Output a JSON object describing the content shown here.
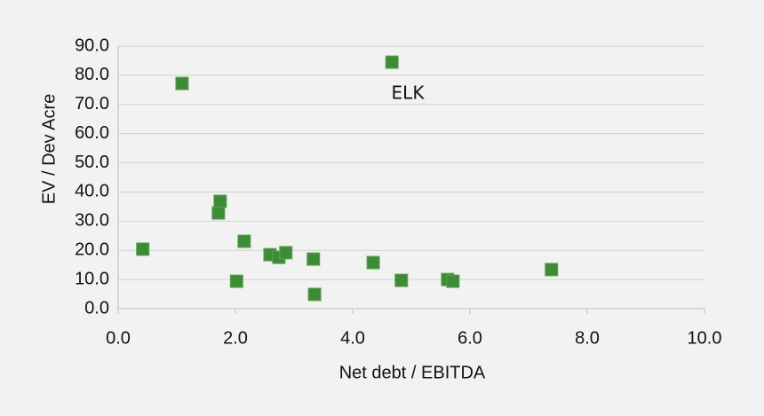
{
  "chart_data": {
    "type": "scatter",
    "x_label": "Net debt / EBITDA",
    "y_label": "EV / Dev Acre",
    "annotation": "ELK",
    "color": "#3e8a36",
    "grid": true,
    "x": [
      0.42,
      1.09,
      1.71,
      1.74,
      2.02,
      2.15,
      2.59,
      2.74,
      2.86,
      3.33,
      3.35,
      4.35,
      4.67,
      4.83,
      5.62,
      5.71,
      7.39
    ],
    "values": [
      20.4,
      77.2,
      32.8,
      36.8,
      9.4,
      23.1,
      18.5,
      17.6,
      19.2,
      17.0,
      4.9,
      15.8,
      84.5,
      9.7,
      10.0,
      9.4,
      13.4
    ],
    "xlim": [
      0,
      10
    ],
    "ylim": [
      0,
      90
    ],
    "xticks": [
      {
        "value": 0,
        "label": "0.0"
      },
      {
        "value": 2,
        "label": "2.0"
      },
      {
        "value": 4,
        "label": "4.0"
      },
      {
        "value": 6,
        "label": "6.0"
      },
      {
        "value": 8,
        "label": "8.0"
      },
      {
        "value": 10,
        "label": "10.0"
      }
    ],
    "yticks": [
      {
        "value": 0,
        "label": "0.0"
      },
      {
        "value": 10,
        "label": "10.0"
      },
      {
        "value": 20,
        "label": "20.0"
      },
      {
        "value": 30,
        "label": "30.0"
      },
      {
        "value": 40,
        "label": "40.0"
      },
      {
        "value": 50,
        "label": "50.0"
      },
      {
        "value": 60,
        "label": "60.0"
      },
      {
        "value": 70,
        "label": "70.0"
      },
      {
        "value": 80,
        "label": "80.0"
      },
      {
        "value": 90,
        "label": "90.0"
      }
    ]
  }
}
